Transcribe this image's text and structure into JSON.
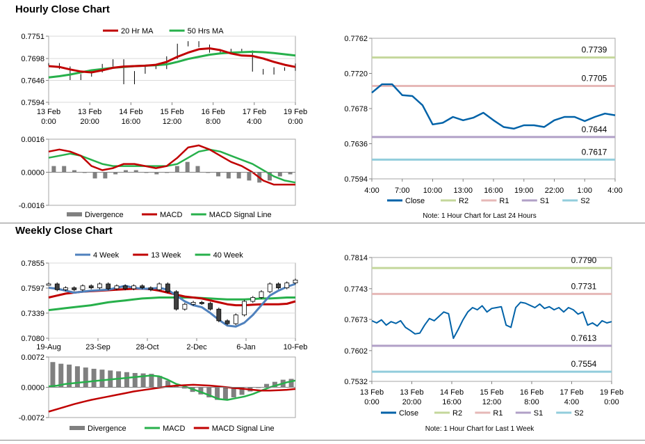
{
  "sections": {
    "hourly_title": "Hourly Close Chart",
    "weekly_title": "Weekly Close Chart"
  },
  "colors": {
    "ma_short": "#c00000",
    "ma_long": "#27b04b",
    "w4": "#4f81bd",
    "w13": "#c00000",
    "w40": "#27b04b",
    "close": "#0062a8",
    "r2": "#c4d79b",
    "r1": "#e6b8b7",
    "s1": "#b1a0c7",
    "s2": "#92cddc",
    "divergence": "#808080"
  },
  "chart_data": [
    {
      "id": "hourly_price",
      "type": "line",
      "legend": [
        "20 Hr MA",
        "50 Hrs MA"
      ],
      "y_ticks": [
        "0.7751",
        "0.7698",
        "0.7646",
        "0.7594"
      ],
      "ylim": [
        0.7594,
        0.7751
      ],
      "x_labels": [
        [
          "13 Feb",
          "0:00"
        ],
        [
          "13 Feb",
          "20:00"
        ],
        [
          "14 Feb",
          "16:00"
        ],
        [
          "15 Feb",
          "12:00"
        ],
        [
          "16 Feb",
          "8:00"
        ],
        [
          "17 Feb",
          "4:00"
        ],
        [
          "19 Feb",
          "0:00"
        ]
      ],
      "series": [
        {
          "name": "20 Hr MA",
          "values": [
            0.768,
            0.7678,
            0.7672,
            0.7667,
            0.7665,
            0.767,
            0.7676,
            0.7679,
            0.768,
            0.7681,
            0.7683,
            0.769,
            0.7702,
            0.7712,
            0.772,
            0.7722,
            0.7718,
            0.771,
            0.7705,
            0.7704,
            0.7698,
            0.769,
            0.7683,
            0.7678
          ]
        },
        {
          "name": "50 Hrs MA",
          "values": [
            0.7653,
            0.7656,
            0.766,
            0.7665,
            0.767,
            0.7673,
            0.7676,
            0.7678,
            0.768,
            0.7681,
            0.7682,
            0.7684,
            0.769,
            0.7697,
            0.7702,
            0.7707,
            0.771,
            0.7712,
            0.7713,
            0.7714,
            0.7713,
            0.7711,
            0.7708,
            0.7705
          ]
        },
        {
          "name": "Close",
          "values": [
            0.7684,
            0.7676,
            0.765,
            0.7658,
            0.7668,
            0.7682,
            0.7693,
            0.764,
            0.7665,
            0.768,
            0.7676,
            0.77,
            0.773,
            0.7736,
            0.7728,
            0.7715,
            0.7712,
            0.7718,
            0.7714,
            0.767,
            0.7663,
            0.7674,
            0.7672,
            0.7683
          ]
        }
      ]
    },
    {
      "id": "hourly_macd",
      "type": "bar",
      "legend": [
        "Divergence",
        "MACD",
        "MACD Signal Line"
      ],
      "y_ticks": [
        "0.0016",
        "0.0000",
        "-0.0016"
      ],
      "ylim": [
        -0.0016,
        0.0016
      ],
      "series": [
        {
          "name": "MACD",
          "values": [
            0.001,
            0.0011,
            0.001,
            0.0008,
            0.0003,
            0.0001,
            0.0002,
            0.0004,
            0.0004,
            0.0003,
            0.0002,
            0.0003,
            0.0007,
            0.0012,
            0.0013,
            0.0011,
            0.0008,
            0.0005,
            0.0003,
            0.0,
            -0.0004,
            -0.0006,
            -0.0006,
            -0.0006
          ]
        },
        {
          "name": "MACD Signal Line",
          "values": [
            0.0007,
            0.0008,
            0.0009,
            0.0008,
            0.0006,
            0.0004,
            0.0003,
            0.0003,
            0.0003,
            0.0003,
            0.0003,
            0.0003,
            0.0004,
            0.0007,
            0.001,
            0.0011,
            0.001,
            0.0008,
            0.0006,
            0.0004,
            0.0001,
            -0.0002,
            -0.0004,
            -0.0005
          ]
        },
        {
          "name": "Divergence",
          "values": [
            0.0003,
            0.0003,
            0.0001,
            0.0,
            -0.0003,
            -0.0003,
            -0.0001,
            0.0001,
            0.0001,
            0.0,
            -0.0001,
            0.0,
            0.0003,
            0.0005,
            0.0003,
            0.0,
            -0.0002,
            -0.0003,
            -0.0003,
            -0.0004,
            -0.0005,
            -0.0004,
            -0.0002,
            -0.0001
          ]
        }
      ]
    },
    {
      "id": "hourly_close",
      "type": "line",
      "legend": [
        "Close",
        "R2",
        "R1",
        "S1",
        "S2"
      ],
      "y_ticks": [
        "0.7762",
        "0.7720",
        "0.7678",
        "0.7636",
        "0.7594"
      ],
      "ylim": [
        0.7594,
        0.7762
      ],
      "x_labels": [
        "4:00",
        "7:00",
        "10:00",
        "13:00",
        "16:00",
        "19:00",
        "22:00",
        "1:00",
        "4:00"
      ],
      "levels": [
        {
          "name": "R2",
          "value": 0.7739,
          "label": "0.7739"
        },
        {
          "name": "R1",
          "value": 0.7705,
          "label": "0.7705"
        },
        {
          "name": "S1",
          "value": 0.7644,
          "label": "0.7644"
        },
        {
          "name": "S2",
          "value": 0.7617,
          "label": "0.7617"
        }
      ],
      "values": [
        0.7697,
        0.7707,
        0.7707,
        0.7694,
        0.7693,
        0.7682,
        0.7659,
        0.7661,
        0.7668,
        0.7664,
        0.7667,
        0.7673,
        0.7664,
        0.7656,
        0.7654,
        0.7658,
        0.7658,
        0.7656,
        0.7664,
        0.7668,
        0.7668,
        0.7663,
        0.7668,
        0.7672,
        0.767
      ],
      "note": "Note: 1 Hour Chart for Last 24 Hours"
    },
    {
      "id": "weekly_price",
      "type": "line",
      "legend": [
        "4 Week",
        "13 Week",
        "40 Week"
      ],
      "y_ticks": [
        "0.7855",
        "0.7597",
        "0.7339",
        "0.7080"
      ],
      "ylim": [
        0.708,
        0.7855
      ],
      "x_labels": [
        "19-Aug",
        "23-Sep",
        "28-Oct",
        "2-Dec",
        "6-Jan",
        "10-Feb"
      ],
      "series": [
        {
          "name": "4 Week",
          "values": [
            0.76,
            0.759,
            0.757,
            0.755,
            0.756,
            0.757,
            0.7575,
            0.758,
            0.76,
            0.762,
            0.76,
            0.759,
            0.759,
            0.76,
            0.758,
            0.752,
            0.746,
            0.742,
            0.74,
            0.734,
            0.727,
            0.721,
            0.72,
            0.724,
            0.732,
            0.742,
            0.752,
            0.757,
            0.761,
            0.764
          ]
        },
        {
          "name": "13 Week",
          "values": [
            0.75,
            0.752,
            0.754,
            0.755,
            0.756,
            0.7565,
            0.757,
            0.7575,
            0.758,
            0.7585,
            0.759,
            0.759,
            0.7585,
            0.757,
            0.755,
            0.753,
            0.751,
            0.75,
            0.749,
            0.747,
            0.745,
            0.743,
            0.742,
            0.742,
            0.7425,
            0.743,
            0.743,
            0.743,
            0.7435,
            0.746
          ]
        },
        {
          "name": "40 Week",
          "values": [
            0.737,
            0.738,
            0.739,
            0.74,
            0.741,
            0.742,
            0.7435,
            0.745,
            0.746,
            0.747,
            0.748,
            0.749,
            0.7495,
            0.75,
            0.75,
            0.75,
            0.75,
            0.75,
            0.7495,
            0.749,
            0.7485,
            0.748,
            0.748,
            0.748,
            0.7485,
            0.749,
            0.749,
            0.7495,
            0.75,
            0.75
          ]
        },
        {
          "name": "Close",
          "values": [
            0.764,
            0.758,
            0.76,
            0.758,
            0.762,
            0.76,
            0.764,
            0.759,
            0.762,
            0.759,
            0.762,
            0.76,
            0.758,
            0.764,
            0.756,
            0.738,
            0.743,
            0.745,
            0.744,
            0.738,
            0.726,
            0.723,
            0.732,
            0.746,
            0.75,
            0.756,
            0.764,
            0.76,
            0.765,
            0.768
          ]
        }
      ]
    },
    {
      "id": "weekly_macd",
      "type": "bar",
      "legend": [
        "Divergence",
        "MACD",
        "MACD Signal Line"
      ],
      "y_ticks": [
        "0.0072",
        "0.0000",
        "-0.0072"
      ],
      "ylim": [
        -0.0072,
        0.0072
      ],
      "series": [
        {
          "name": "MACD",
          "values": [
            0.0002,
            0.0004,
            0.0008,
            0.001,
            0.0012,
            0.0014,
            0.0016,
            0.0018,
            0.002,
            0.0022,
            0.0024,
            0.0026,
            0.0028,
            0.0026,
            0.0018,
            0.0008,
            0.0002,
            -0.0005,
            -0.0012,
            -0.002,
            -0.0028,
            -0.003,
            -0.0026,
            -0.0022,
            -0.0016,
            -0.0008,
            0.0,
            0.0006,
            0.0012,
            0.0016
          ]
        },
        {
          "name": "MACD Signal Line",
          "values": [
            -0.0058,
            -0.0052,
            -0.0046,
            -0.004,
            -0.0035,
            -0.003,
            -0.0026,
            -0.0022,
            -0.0018,
            -0.0014,
            -0.001,
            -0.0007,
            -0.0004,
            -0.0001,
            0.0002,
            0.0004,
            0.0005,
            0.0006,
            0.0005,
            0.0004,
            0.0002,
            0.0,
            -0.0002,
            -0.0004,
            -0.0006,
            -0.0008,
            -0.0008,
            -0.0007,
            -0.0006,
            -0.0004
          ]
        },
        {
          "name": "Divergence",
          "values": [
            0.006,
            0.0056,
            0.0054,
            0.005,
            0.0047,
            0.0044,
            0.0042,
            0.004,
            0.0038,
            0.0036,
            0.0034,
            0.0033,
            0.0032,
            0.0027,
            0.0016,
            0.0004,
            -0.0003,
            -0.0011,
            -0.0017,
            -0.0024,
            -0.003,
            -0.003,
            -0.0024,
            -0.0018,
            -0.001,
            0.0,
            0.0008,
            0.0013,
            0.0018,
            0.002
          ]
        }
      ]
    },
    {
      "id": "weekly_close",
      "type": "line",
      "legend": [
        "Close",
        "R2",
        "R1",
        "S1",
        "S2"
      ],
      "y_ticks": [
        "0.7814",
        "0.7743",
        "0.7673",
        "0.7602",
        "0.7532"
      ],
      "ylim": [
        0.7532,
        0.7814
      ],
      "x_labels": [
        [
          "13 Feb",
          "0:00"
        ],
        [
          "13 Feb",
          "20:00"
        ],
        [
          "14 Feb",
          "16:00"
        ],
        [
          "15 Feb",
          "12:00"
        ],
        [
          "16 Feb",
          "8:00"
        ],
        [
          "17 Feb",
          "4:00"
        ],
        [
          "19 Feb",
          "0:00"
        ]
      ],
      "levels": [
        {
          "name": "R2",
          "value": 0.779,
          "label": "0.7790"
        },
        {
          "name": "R1",
          "value": 0.7731,
          "label": "0.7731"
        },
        {
          "name": "S1",
          "value": 0.7613,
          "label": "0.7613"
        },
        {
          "name": "S2",
          "value": 0.7554,
          "label": "0.7554"
        }
      ],
      "values": [
        0.767,
        0.7665,
        0.7672,
        0.766,
        0.7668,
        0.7664,
        0.767,
        0.7655,
        0.7648,
        0.764,
        0.7642,
        0.766,
        0.7675,
        0.767,
        0.768,
        0.769,
        0.7686,
        0.763,
        0.765,
        0.7672,
        0.769,
        0.77,
        0.7695,
        0.7704,
        0.769,
        0.7698,
        0.77,
        0.7702,
        0.766,
        0.7655,
        0.77,
        0.7712,
        0.771,
        0.7705,
        0.77,
        0.7708,
        0.7698,
        0.7702,
        0.7695,
        0.77,
        0.769,
        0.77,
        0.7695,
        0.7685,
        0.769,
        0.766,
        0.7665,
        0.7658,
        0.767,
        0.7665,
        0.7668
      ],
      "note": "Note: 1 Hour Chart for Last 1 Week"
    }
  ]
}
